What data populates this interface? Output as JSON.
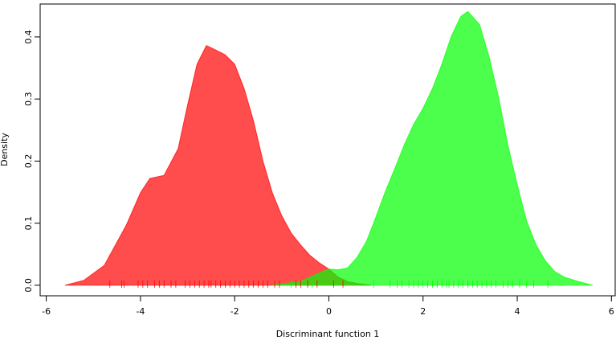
{
  "chart_data": {
    "type": "density",
    "xlabel": "Discriminant function 1",
    "ylabel": "Density",
    "xlim": [
      -6.13,
      6.08
    ],
    "ylim": [
      -0.017,
      0.453
    ],
    "xticks": [
      -6,
      -4,
      -2,
      0,
      2,
      4,
      6
    ],
    "yticks": [
      {
        "value": 0,
        "label": "0.0"
      },
      0.1,
      0.2,
      0.3,
      0.4
    ],
    "series": [
      {
        "color": "#ff0000",
        "x": [
          -5.6,
          -5.2,
          -4.77,
          -4.3,
          -4.0,
          -3.8,
          -3.5,
          -3.2,
          -3.0,
          -2.8,
          -2.6,
          -2.4,
          -2.2,
          -2.0,
          -1.8,
          -1.6,
          -1.4,
          -1.2,
          -1.0,
          -0.8,
          -0.6,
          -0.4,
          -0.2,
          0,
          0.2,
          0.4,
          0.6,
          0.9
        ],
        "values": [
          0,
          0.008,
          0.032,
          0.097,
          0.149,
          0.172,
          0.177,
          0.22,
          0.29,
          0.356,
          0.386,
          0.379,
          0.371,
          0.356,
          0.317,
          0.265,
          0.2,
          0.149,
          0.112,
          0.084,
          0.065,
          0.048,
          0.036,
          0.026,
          0.013,
          0.006,
          0.003,
          0
        ],
        "rug": [
          -4.65,
          -4.4,
          -4.35,
          -4.05,
          -3.95,
          -3.85,
          -3.7,
          -3.6,
          -3.5,
          -3.35,
          -3.25,
          -3.05,
          -2.95,
          -2.85,
          -2.75,
          -2.65,
          -2.55,
          -2.5,
          -2.4,
          -2.3,
          -2.2,
          -2.1,
          -2.0,
          -1.9,
          -1.8,
          -1.7,
          -1.6,
          -1.5,
          -1.4,
          -1.3,
          -1.15,
          -1.05,
          -0.7,
          -0.6,
          -0.45,
          -0.25,
          0.1,
          0.3
        ]
      },
      {
        "color": "#00ff00",
        "x": [
          -1.2,
          -0.6,
          -0.2,
          0,
          0.2,
          0.4,
          0.6,
          0.8,
          1.0,
          1.2,
          1.4,
          1.6,
          1.8,
          2.0,
          2.2,
          2.4,
          2.6,
          2.8,
          2.95,
          3.2,
          3.4,
          3.6,
          3.8,
          4.0,
          4.2,
          4.4,
          4.6,
          4.8,
          5.0,
          5.3,
          5.6
        ],
        "values": [
          0,
          0.006,
          0.02,
          0.026,
          0.025,
          0.028,
          0.045,
          0.071,
          0.11,
          0.151,
          0.188,
          0.226,
          0.259,
          0.285,
          0.317,
          0.356,
          0.401,
          0.433,
          0.441,
          0.42,
          0.369,
          0.304,
          0.226,
          0.162,
          0.103,
          0.065,
          0.039,
          0.022,
          0.013,
          0.006,
          0
        ],
        "rug": [
          -0.8,
          -0.35,
          0.95,
          1.3,
          1.45,
          1.55,
          1.7,
          1.8,
          1.9,
          2.0,
          2.1,
          2.2,
          2.3,
          2.4,
          2.5,
          2.55,
          2.65,
          2.75,
          2.85,
          2.95,
          3.05,
          3.15,
          3.25,
          3.35,
          3.45,
          3.55,
          3.7,
          3.8,
          3.9,
          4.05,
          4.2,
          4.35,
          4.65
        ]
      }
    ]
  }
}
